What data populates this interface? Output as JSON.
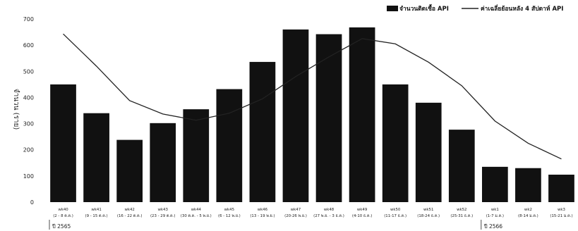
{
  "chart_data": {
    "type": "bar",
    "ylabel": "จำนวน (ราย)",
    "ylim": [
      0,
      700
    ],
    "yticks": [
      0,
      100,
      200,
      300,
      400,
      500,
      600,
      700
    ],
    "grid": false,
    "legend": "top-right",
    "categories": [
      {
        "week": "wk40",
        "range": "(2 - 8 ต.ค.)"
      },
      {
        "week": "wk41",
        "range": "(9 - 15 ต.ค.)"
      },
      {
        "week": "wk42",
        "range": "(16 - 22 ต.ค.)"
      },
      {
        "week": "wk43",
        "range": "(23 - 29 ต.ค.)"
      },
      {
        "week": "wk44",
        "range": "(30 ต.ค. - 5 พ.ย.)"
      },
      {
        "week": "wk45",
        "range": "(6 - 12 พ.ย.)"
      },
      {
        "week": "wk46",
        "range": "(13 - 19 พ.ย.)"
      },
      {
        "week": "wk47",
        "range": "(20-26 พ.ย.)"
      },
      {
        "week": "wk48",
        "range": "(27 พ.ย. - 3 ธ.ค.)"
      },
      {
        "week": "wk49",
        "range": "(4-10 ธ.ค.)"
      },
      {
        "week": "wk50",
        "range": "(11-17 ธ.ค.)"
      },
      {
        "week": "wk51",
        "range": "(18-24 ธ.ค.)"
      },
      {
        "week": "wk52",
        "range": "(25-31 ธ.ค.)"
      },
      {
        "week": "wk1",
        "range": "(1-7 ม.ค.)"
      },
      {
        "week": "wk2",
        "range": "(8-14 ม.ค.)"
      },
      {
        "week": "wk3",
        "range": "(15-21 ม.ค.)"
      }
    ],
    "series": [
      {
        "name": "จำนวนติดเชื้อ API",
        "type": "bar",
        "color": "#111111",
        "values": [
          450,
          340,
          238,
          302,
          355,
          432,
          536,
          660,
          642,
          668,
          450,
          380,
          277,
          135,
          130,
          105
        ]
      },
      {
        "name": "ค่าเฉลี่ยย้อนหลัง 4 สัปดาห์ API",
        "type": "line",
        "color": "#222222",
        "values": [
          643,
          520,
          388,
          337,
          313,
          340,
          395,
          480,
          555,
          625,
          605,
          535,
          445,
          310,
          225,
          165
        ]
      }
    ],
    "year_markers": [
      {
        "label": "ปี 2565",
        "at_category": 0
      },
      {
        "label": "ปี 2566",
        "at_category": 13
      }
    ]
  }
}
